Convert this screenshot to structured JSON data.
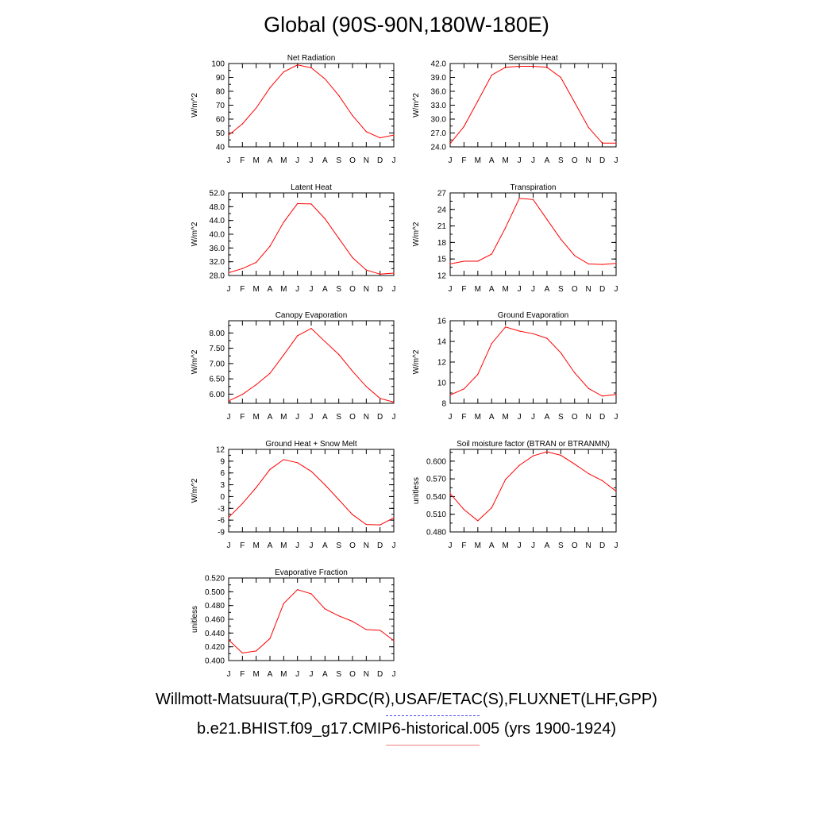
{
  "title": "Global (90S-90N,180W-180E)",
  "footer": {
    "obs_sources": "Willmott-Matsuura(T,P),GRDC(R),USAF/ETAC(S),FLUXNET(LHF,GPP)",
    "model_case": "b.e21.BHIST.f09_g17.CMIP6-historical.005 (yrs 1900-1924)"
  },
  "colors": {
    "model_line": "#ff0000",
    "obs_legend": "#4a4af0",
    "model_legend": "#f08080"
  },
  "chart_data": [
    {
      "type": "line",
      "title": "Net Radiation",
      "ylabel": "W/m^2",
      "x": [
        "J",
        "F",
        "M",
        "A",
        "M",
        "J",
        "J",
        "A",
        "S",
        "O",
        "N",
        "D",
        "J"
      ],
      "ylim": [
        40,
        100
      ],
      "yticks": [
        "40",
        "50",
        "60",
        "70",
        "80",
        "90",
        "100"
      ],
      "yticks_values": [
        40,
        50,
        60,
        70,
        80,
        90,
        100
      ],
      "series": [
        {
          "values": [
            48.5,
            56.5,
            68,
            82.5,
            94,
            99,
            97,
            89,
            77,
            62.5,
            51,
            46.5,
            48.5
          ]
        }
      ]
    },
    {
      "type": "line",
      "title": "Sensible Heat",
      "ylabel": "W/m^2",
      "x": [
        "J",
        "F",
        "M",
        "A",
        "M",
        "J",
        "J",
        "A",
        "S",
        "O",
        "N",
        "D",
        "J"
      ],
      "ylim": [
        24.0,
        42.0
      ],
      "yticks": [
        "24.0",
        "27.0",
        "30.0",
        "33.0",
        "36.0",
        "39.0",
        "42.0"
      ],
      "yticks_values": [
        24,
        27,
        30,
        33,
        36,
        39,
        42
      ],
      "series": [
        {
          "values": [
            24.7,
            28.4,
            33.9,
            39.5,
            41.2,
            41.4,
            41.4,
            41.2,
            39.0,
            33.6,
            28.2,
            24.8,
            24.8
          ]
        }
      ]
    },
    {
      "type": "line",
      "title": "Latent Heat",
      "ylabel": "W/m^2",
      "x": [
        "J",
        "F",
        "M",
        "A",
        "M",
        "J",
        "J",
        "A",
        "S",
        "O",
        "N",
        "D",
        "J"
      ],
      "ylim": [
        28.0,
        52.0
      ],
      "yticks": [
        "28.0",
        "32.0",
        "36.0",
        "40.0",
        "44.0",
        "48.0",
        "52.0"
      ],
      "yticks_values": [
        28,
        32,
        36,
        40,
        44,
        48,
        52
      ],
      "series": [
        {
          "values": [
            28.8,
            30.0,
            31.8,
            36.5,
            43.5,
            48.9,
            48.8,
            44.5,
            38.8,
            33.2,
            29.6,
            28.4,
            28.7
          ]
        }
      ]
    },
    {
      "type": "line",
      "title": "Transpiration",
      "ylabel": "W/m^2",
      "x": [
        "J",
        "F",
        "M",
        "A",
        "M",
        "J",
        "J",
        "A",
        "S",
        "O",
        "N",
        "D",
        "J"
      ],
      "ylim": [
        12,
        27
      ],
      "yticks": [
        "12",
        "15",
        "18",
        "21",
        "24",
        "27"
      ],
      "yticks_values": [
        12,
        15,
        18,
        21,
        24,
        27
      ],
      "series": [
        {
          "values": [
            14.1,
            14.6,
            14.6,
            15.9,
            20.7,
            26.0,
            25.8,
            22.2,
            18.6,
            15.6,
            14.1,
            14.0,
            14.2
          ]
        }
      ]
    },
    {
      "type": "line",
      "title": "Canopy Evaporation",
      "ylabel": "W/m^2",
      "x": [
        "J",
        "F",
        "M",
        "A",
        "M",
        "J",
        "J",
        "A",
        "S",
        "O",
        "N",
        "D",
        "J"
      ],
      "ylim": [
        5.7,
        8.4
      ],
      "yticks": [
        "6.00",
        "6.50",
        "7.00",
        "7.50",
        "8.00"
      ],
      "yticks_values": [
        6.0,
        6.5,
        7.0,
        7.5,
        8.0
      ],
      "series": [
        {
          "values": [
            5.78,
            5.99,
            6.31,
            6.68,
            7.28,
            7.91,
            8.15,
            7.72,
            7.3,
            6.75,
            6.25,
            5.86,
            5.74
          ]
        }
      ]
    },
    {
      "type": "line",
      "title": "Ground Evaporation",
      "ylabel": "W/m^2",
      "x": [
        "J",
        "F",
        "M",
        "A",
        "M",
        "J",
        "J",
        "A",
        "S",
        "O",
        "N",
        "D",
        "J"
      ],
      "ylim": [
        8,
        16
      ],
      "yticks": [
        "8",
        "10",
        "12",
        "14",
        "16"
      ],
      "yticks_values": [
        8,
        10,
        12,
        14,
        16
      ],
      "series": [
        {
          "values": [
            8.8,
            9.4,
            10.8,
            13.8,
            15.4,
            15.0,
            14.75,
            14.3,
            12.9,
            10.95,
            9.45,
            8.7,
            8.85
          ]
        }
      ]
    },
    {
      "type": "line",
      "title": "Ground Heat + Snow Melt",
      "ylabel": "W/m^2",
      "x": [
        "J",
        "F",
        "M",
        "A",
        "M",
        "J",
        "J",
        "A",
        "S",
        "O",
        "N",
        "D",
        "J"
      ],
      "ylim": [
        -9,
        12
      ],
      "yticks": [
        "-9",
        "-6",
        "-3",
        "0",
        "3",
        "6",
        "9",
        "12"
      ],
      "yticks_values": [
        -9,
        -6,
        -3,
        0,
        3,
        6,
        9,
        12
      ],
      "series": [
        {
          "values": [
            -5.3,
            -1.8,
            2.3,
            6.9,
            9.4,
            8.6,
            6.4,
            3.0,
            -0.8,
            -4.6,
            -7.1,
            -7.2,
            -5.4
          ]
        }
      ]
    },
    {
      "type": "line",
      "title": "Soil moisture factor (BTRAN or BTRANMN)",
      "ylabel": "unitless",
      "x": [
        "J",
        "F",
        "M",
        "A",
        "M",
        "J",
        "J",
        "A",
        "S",
        "O",
        "N",
        "D",
        "J"
      ],
      "ylim": [
        0.48,
        0.62
      ],
      "yticks": [
        "0.480",
        "0.510",
        "0.540",
        "0.570",
        "0.600"
      ],
      "yticks_values": [
        0.48,
        0.51,
        0.54,
        0.57,
        0.6
      ],
      "series": [
        {
          "values": [
            0.545,
            0.518,
            0.499,
            0.521,
            0.569,
            0.593,
            0.609,
            0.616,
            0.61,
            0.595,
            0.579,
            0.567,
            0.549
          ]
        }
      ]
    },
    {
      "type": "line",
      "title": "Evaporative Fraction",
      "ylabel": "unitless",
      "x": [
        "J",
        "F",
        "M",
        "A",
        "M",
        "J",
        "J",
        "A",
        "S",
        "O",
        "N",
        "D",
        "J"
      ],
      "ylim": [
        0.4,
        0.52
      ],
      "yticks": [
        "0.400",
        "0.420",
        "0.440",
        "0.460",
        "0.480",
        "0.500",
        "0.520"
      ],
      "yticks_values": [
        0.4,
        0.42,
        0.44,
        0.46,
        0.48,
        0.5,
        0.52
      ],
      "series": [
        {
          "values": [
            0.43,
            0.411,
            0.414,
            0.432,
            0.483,
            0.503,
            0.497,
            0.475,
            0.465,
            0.457,
            0.445,
            0.444,
            0.429
          ]
        }
      ]
    }
  ]
}
